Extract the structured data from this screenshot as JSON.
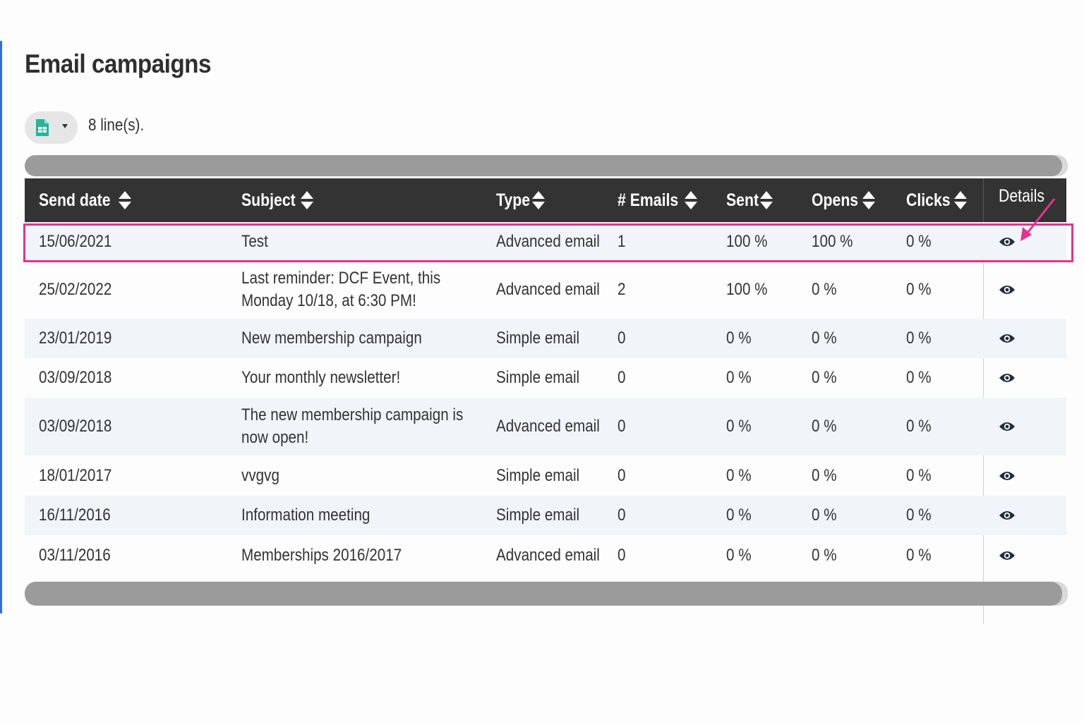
{
  "page": {
    "title": "Email campaigns"
  },
  "toolbar": {
    "line_count": "8 line(s).",
    "export_icon": "spreadsheet-icon"
  },
  "table": {
    "columns": [
      "Send date",
      "Subject",
      "Type",
      "# Emails",
      "Sent",
      "Opens",
      "Clicks",
      "Details"
    ],
    "rows": [
      {
        "send_date": "15/06/2021",
        "subject": "Test",
        "type": "Advanced email",
        "emails": "1",
        "sent": "100 %",
        "opens": "100 %",
        "clicks": "0 %"
      },
      {
        "send_date": "25/02/2022",
        "subject": "Last reminder: DCF Event, this Monday 10/18, at 6:30 PM!",
        "type": "Advanced email",
        "emails": "2",
        "sent": "100 %",
        "opens": "0 %",
        "clicks": "0 %"
      },
      {
        "send_date": "23/01/2019",
        "subject": "New membership campaign",
        "type": "Simple email",
        "emails": "0",
        "sent": "0 %",
        "opens": "0 %",
        "clicks": "0 %"
      },
      {
        "send_date": "03/09/2018",
        "subject": "Your monthly newsletter!",
        "type": "Simple email",
        "emails": "0",
        "sent": "0 %",
        "opens": "0 %",
        "clicks": "0 %"
      },
      {
        "send_date": "03/09/2018",
        "subject": "The new membership campaign is now open!",
        "type": "Advanced email",
        "emails": "0",
        "sent": "0 %",
        "opens": "0 %",
        "clicks": "0 %"
      },
      {
        "send_date": "18/01/2017",
        "subject": "vvgvg",
        "type": "Simple email",
        "emails": "0",
        "sent": "0 %",
        "opens": "0 %",
        "clicks": "0 %"
      },
      {
        "send_date": "16/11/2016",
        "subject": "Information meeting",
        "type": "Simple email",
        "emails": "0",
        "sent": "0 %",
        "opens": "0 %",
        "clicks": "0 %"
      },
      {
        "send_date": "03/11/2016",
        "subject": "Memberships 2016/2017",
        "type": "Advanced email",
        "emails": "0",
        "sent": "0 %",
        "opens": "0 %",
        "clicks": "0 %"
      }
    ]
  },
  "colors": {
    "highlight": "#e4338f",
    "header_bg": "#333333",
    "accent": "#2d6fe0",
    "icon_green": "#2bb39a"
  }
}
